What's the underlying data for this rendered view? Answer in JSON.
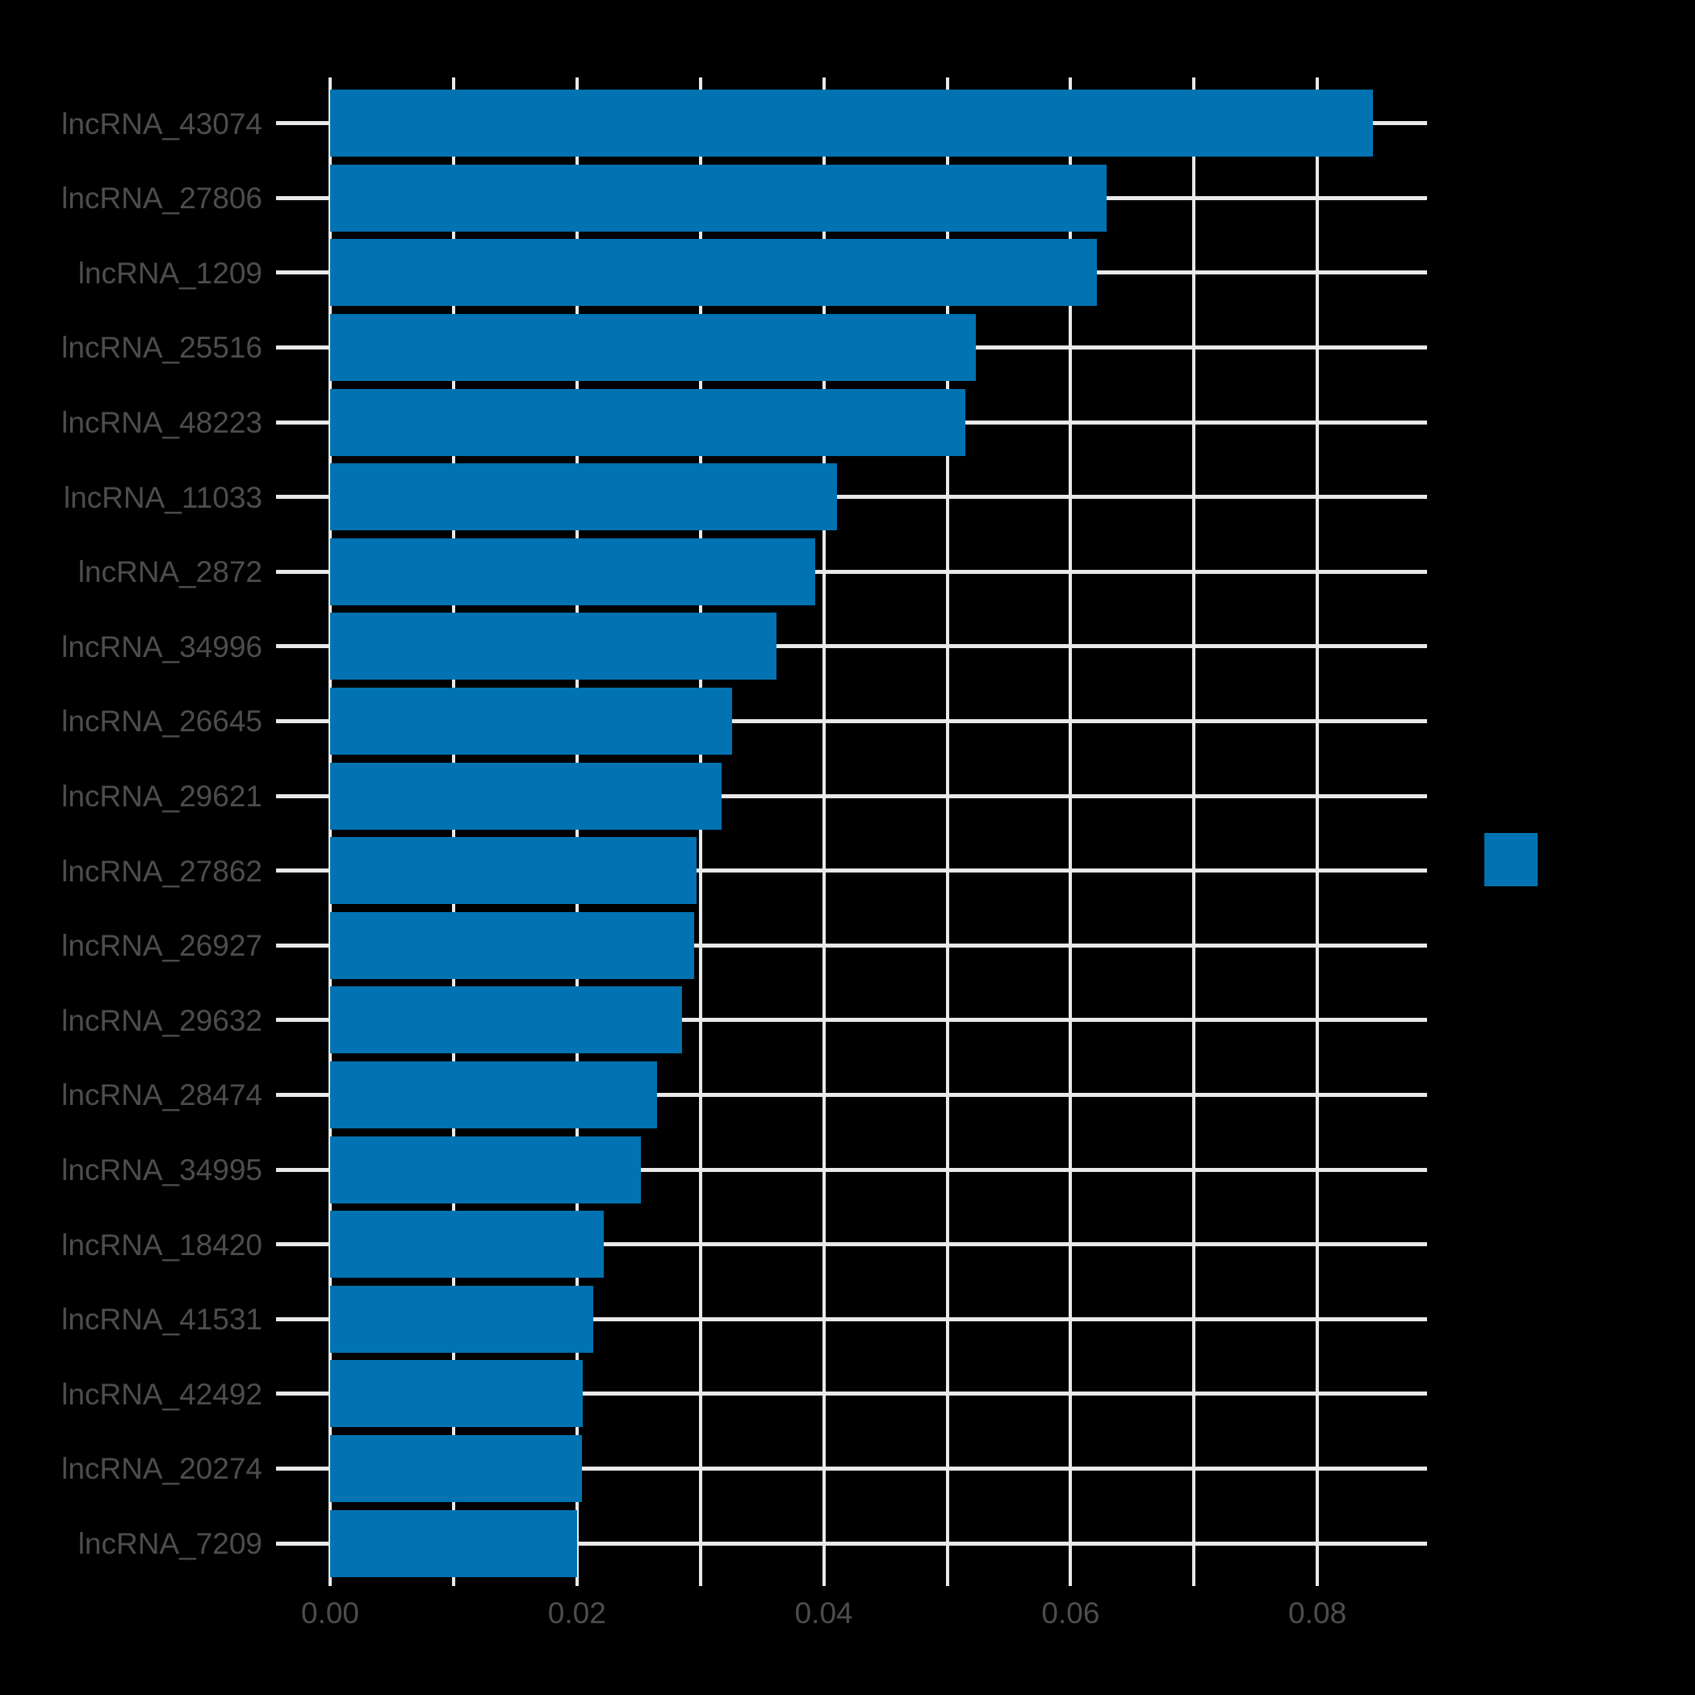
{
  "chart_data": {
    "type": "bar",
    "orientation": "horizontal",
    "title": "",
    "xlabel": "",
    "ylabel": "",
    "categories": [
      "lncRNA_43074",
      "lncRNA_27806",
      "lncRNA_1209",
      "lncRNA_25516",
      "lncRNA_48223",
      "lncRNA_11033",
      "lncRNA_2872",
      "lncRNA_34996",
      "lncRNA_26645",
      "lncRNA_29621",
      "lncRNA_27862",
      "lncRNA_26927",
      "lncRNA_29632",
      "lncRNA_28474",
      "lncRNA_34995",
      "lncRNA_18420",
      "lncRNA_41531",
      "lncRNA_42492",
      "lncRNA_20274",
      "lncRNA_7209"
    ],
    "values": [
      0.0845,
      0.0629,
      0.0621,
      0.0523,
      0.0515,
      0.0411,
      0.0393,
      0.0362,
      0.0326,
      0.0317,
      0.0297,
      0.0295,
      0.0285,
      0.0265,
      0.0252,
      0.0222,
      0.0213,
      0.0205,
      0.0204,
      0.02
    ],
    "x_tick_labels": [
      "0.00",
      "0.02",
      "0.04",
      "0.06",
      "0.08"
    ],
    "x_tick_values": [
      0.0,
      0.02,
      0.04,
      0.06,
      0.08
    ],
    "x_minor_grid_step": 0.01,
    "xlim": [
      0,
      0.0889
    ],
    "grid": true,
    "background_color": "#000000",
    "bar_color": "#0173b2",
    "grid_color": "#e9e9e9",
    "text_color": "#4d4d4d",
    "legend": {
      "visible": true,
      "position": "right-of-plot",
      "swatch_color": "#0173b2",
      "label": ""
    }
  }
}
